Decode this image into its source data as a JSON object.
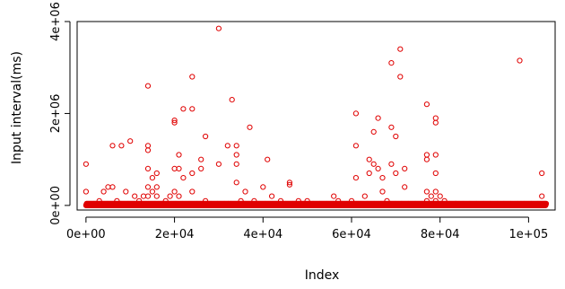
{
  "chart_data": {
    "type": "scatter",
    "title": "",
    "xlabel": "Index",
    "ylabel": "Input interval(ms)",
    "xlim": [
      -2000,
      106000
    ],
    "ylim": [
      -100000,
      4000000
    ],
    "xticks": [
      0,
      20000,
      40000,
      60000,
      80000,
      100000
    ],
    "xtick_labels": [
      "0e+00",
      "2e+04",
      "4e+04",
      "6e+04",
      "8e+04",
      "1e+05"
    ],
    "yticks": [
      0,
      2000000,
      4000000
    ],
    "ytick_labels": [
      "0e+00",
      "2e+06",
      "4e+06"
    ],
    "marker": "open-circle",
    "color": "#e00000",
    "grid": false,
    "legend": "none",
    "baseline": {
      "description": "dense band of points near zero across the full index range",
      "x_start": 0,
      "x_end": 104000,
      "y_values": [
        0,
        20000,
        40000
      ]
    },
    "points": [
      [
        0,
        900000
      ],
      [
        0,
        300000
      ],
      [
        3000,
        100000
      ],
      [
        4000,
        300000
      ],
      [
        5000,
        400000
      ],
      [
        6000,
        1300000
      ],
      [
        6000,
        400000
      ],
      [
        7000,
        100000
      ],
      [
        8000,
        1300000
      ],
      [
        9000,
        300000
      ],
      [
        10000,
        1400000
      ],
      [
        11000,
        200000
      ],
      [
        12000,
        100000
      ],
      [
        13000,
        200000
      ],
      [
        14000,
        2600000
      ],
      [
        14000,
        1300000
      ],
      [
        14000,
        1200000
      ],
      [
        14000,
        800000
      ],
      [
        14000,
        400000
      ],
      [
        14000,
        200000
      ],
      [
        15000,
        600000
      ],
      [
        15000,
        300000
      ],
      [
        16000,
        700000
      ],
      [
        16000,
        400000
      ],
      [
        16000,
        200000
      ],
      [
        18000,
        100000
      ],
      [
        19000,
        200000
      ],
      [
        20000,
        1850000
      ],
      [
        20000,
        1800000
      ],
      [
        20000,
        800000
      ],
      [
        20000,
        300000
      ],
      [
        21000,
        1100000
      ],
      [
        21000,
        800000
      ],
      [
        21000,
        200000
      ],
      [
        22000,
        2100000
      ],
      [
        22000,
        600000
      ],
      [
        24000,
        2800000
      ],
      [
        24000,
        2100000
      ],
      [
        24000,
        700000
      ],
      [
        24000,
        300000
      ],
      [
        26000,
        1000000
      ],
      [
        26000,
        800000
      ],
      [
        27000,
        1500000
      ],
      [
        27000,
        100000
      ],
      [
        30000,
        3850000
      ],
      [
        30000,
        900000
      ],
      [
        32000,
        1300000
      ],
      [
        33000,
        2300000
      ],
      [
        34000,
        1300000
      ],
      [
        34000,
        1100000
      ],
      [
        34000,
        900000
      ],
      [
        34000,
        500000
      ],
      [
        35000,
        100000
      ],
      [
        36000,
        300000
      ],
      [
        37000,
        1700000
      ],
      [
        38000,
        100000
      ],
      [
        40000,
        400000
      ],
      [
        41000,
        1000000
      ],
      [
        42000,
        200000
      ],
      [
        44000,
        100000
      ],
      [
        46000,
        500000
      ],
      [
        46000,
        450000
      ],
      [
        48000,
        100000
      ],
      [
        50000,
        100000
      ],
      [
        56000,
        200000
      ],
      [
        57000,
        100000
      ],
      [
        60000,
        100000
      ],
      [
        61000,
        2000000
      ],
      [
        61000,
        1300000
      ],
      [
        61000,
        600000
      ],
      [
        63000,
        200000
      ],
      [
        64000,
        1000000
      ],
      [
        64000,
        700000
      ],
      [
        65000,
        1600000
      ],
      [
        65000,
        900000
      ],
      [
        66000,
        1900000
      ],
      [
        66000,
        800000
      ],
      [
        67000,
        600000
      ],
      [
        67000,
        300000
      ],
      [
        68000,
        100000
      ],
      [
        69000,
        3100000
      ],
      [
        69000,
        1700000
      ],
      [
        69000,
        900000
      ],
      [
        70000,
        1500000
      ],
      [
        70000,
        700000
      ],
      [
        71000,
        2800000
      ],
      [
        71000,
        3400000
      ],
      [
        72000,
        800000
      ],
      [
        72000,
        400000
      ],
      [
        77000,
        2200000
      ],
      [
        77000,
        1100000
      ],
      [
        77000,
        1000000
      ],
      [
        77000,
        300000
      ],
      [
        77000,
        100000
      ],
      [
        78000,
        200000
      ],
      [
        79000,
        1900000
      ],
      [
        79000,
        1800000
      ],
      [
        79000,
        1100000
      ],
      [
        79000,
        700000
      ],
      [
        79000,
        300000
      ],
      [
        79000,
        100000
      ],
      [
        80000,
        200000
      ],
      [
        81000,
        100000
      ],
      [
        98000,
        3150000
      ],
      [
        103000,
        700000
      ],
      [
        103000,
        200000
      ]
    ]
  }
}
